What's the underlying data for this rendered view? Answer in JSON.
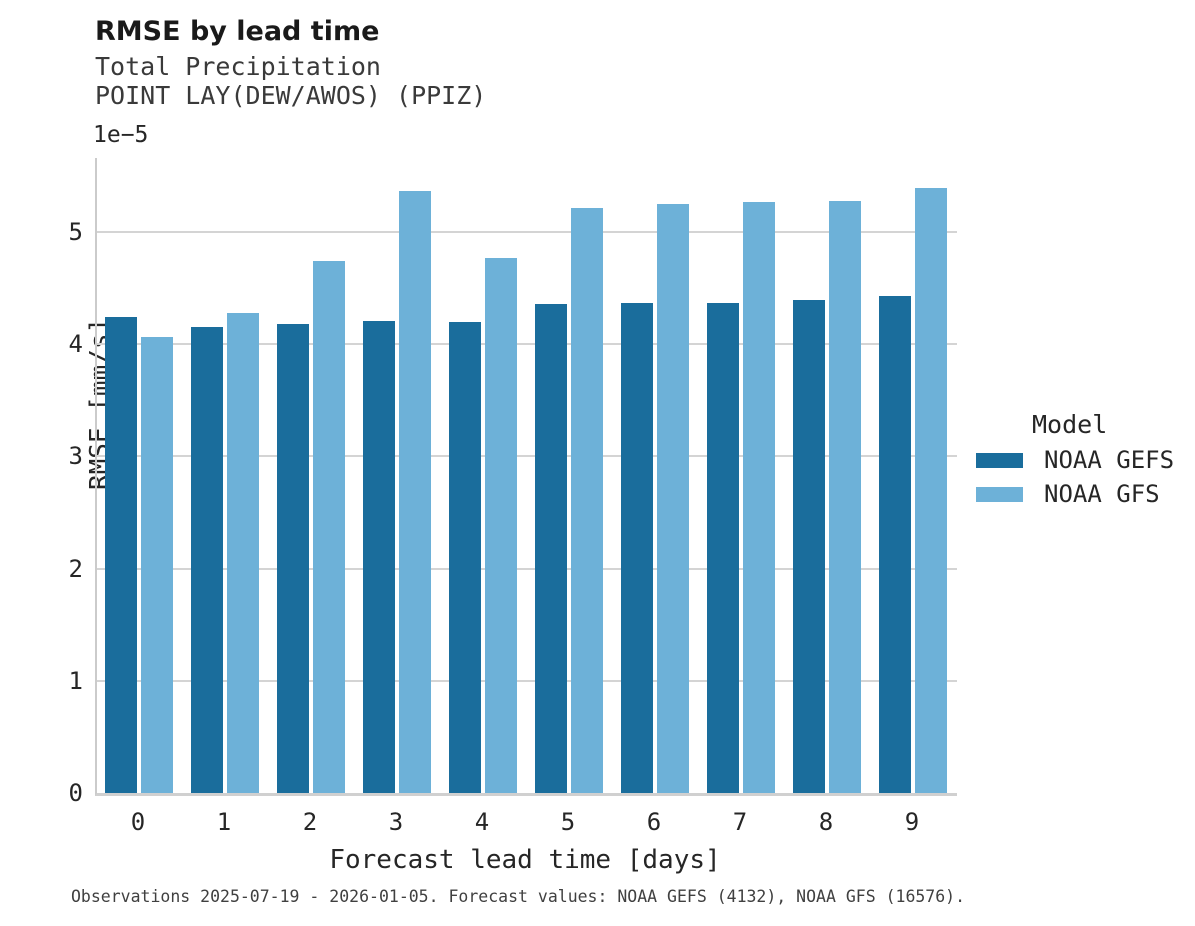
{
  "header": {
    "title": "RMSE by lead time",
    "subtitle_line1": "Total Precipitation",
    "subtitle_line2": "POINT LAY(DEW/AWOS) (PPIZ)"
  },
  "axes": {
    "xlabel": "Forecast lead time [days]",
    "ylabel": "RMSE [mm/s]",
    "y_offset_label": "1e−5",
    "yticks": [
      0,
      1,
      2,
      3,
      4,
      5
    ],
    "xticks": [
      "0",
      "1",
      "2",
      "3",
      "4",
      "5",
      "6",
      "7",
      "8",
      "9"
    ]
  },
  "legend": {
    "title": "Model",
    "items": [
      {
        "label": "NOAA GEFS",
        "color": "#1a6d9c"
      },
      {
        "label": "NOAA GFS",
        "color": "#6db1d8"
      }
    ]
  },
  "footnote": "Observations 2025-07-19 - 2026-01-05. Forecast values: NOAA GEFS (4132), NOAA GFS (16576).",
  "colors": {
    "gefs_bar": "#1a6d9c",
    "gfs_bar": "#6db1d8",
    "gridline": "#d4d4d4",
    "spine": "#cbcbcb",
    "text": "#262626"
  },
  "chart_data": {
    "type": "bar",
    "title": "RMSE by lead time",
    "subtitle": [
      "Total Precipitation",
      "POINT LAY(DEW/AWOS) (PPIZ)"
    ],
    "xlabel": "Forecast lead time [days]",
    "ylabel": "RMSE [mm/s]",
    "y_scale_note": "values are in units of 1e-5 mm/s",
    "categories": [
      0,
      1,
      2,
      3,
      4,
      5,
      6,
      7,
      8,
      9
    ],
    "series": [
      {
        "name": "NOAA GEFS",
        "color": "#1a6d9c",
        "values": [
          4.24,
          4.15,
          4.18,
          4.21,
          4.2,
          4.36,
          4.37,
          4.37,
          4.39,
          4.43
        ]
      },
      {
        "name": "NOAA GFS",
        "color": "#6db1d8",
        "values": [
          4.06,
          4.28,
          4.74,
          5.37,
          4.77,
          5.21,
          5.25,
          5.27,
          5.28,
          5.39
        ]
      }
    ],
    "ylim": [
      0,
      5.66
    ],
    "yticks": [
      0,
      1,
      2,
      3,
      4,
      5
    ],
    "grid": true,
    "legend_position": "right",
    "footnote": "Observations 2025-07-19 - 2026-01-05. Forecast values: NOAA GEFS (4132), NOAA GFS (16576)."
  }
}
